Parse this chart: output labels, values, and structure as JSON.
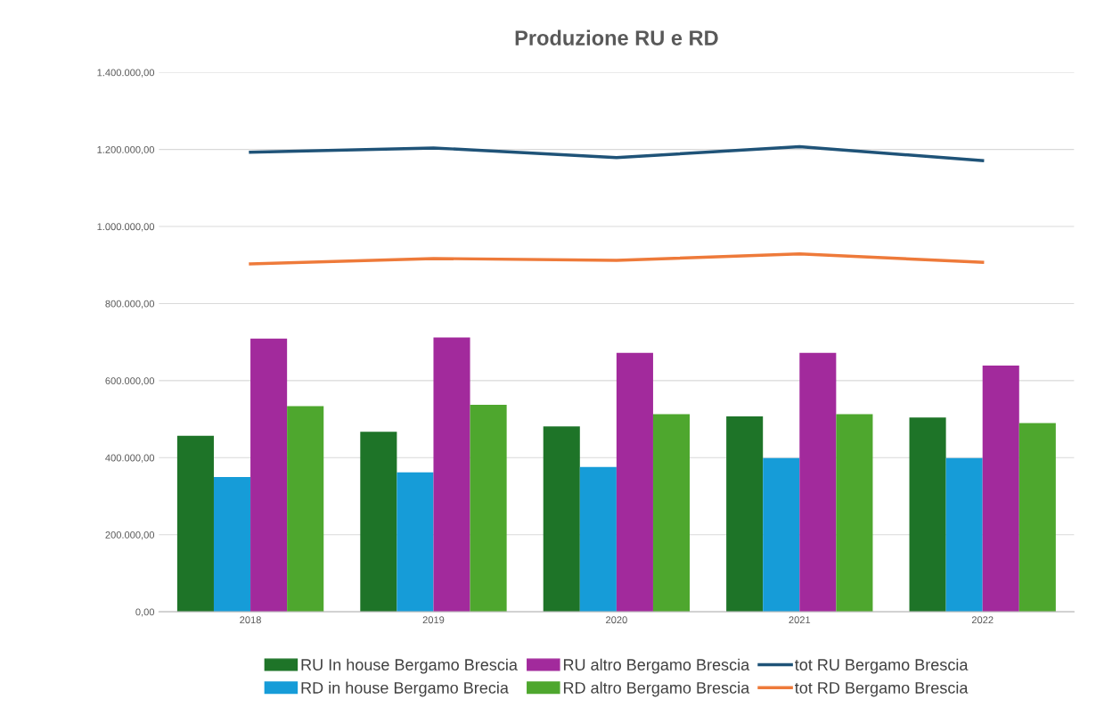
{
  "chart_data": {
    "type": "bar",
    "title": "Produzione RU e RD",
    "categories": [
      "2018",
      "2019",
      "2020",
      "2021",
      "2022"
    ],
    "series": [
      {
        "name": "RU In house Bergamo Brescia",
        "color": "#1e7428",
        "values": [
          457000,
          467000,
          481000,
          507000,
          504000
        ]
      },
      {
        "name": "RD in house Bergamo Brecia",
        "color": "#169cd8",
        "values": [
          350000,
          362000,
          376000,
          399000,
          399000
        ]
      },
      {
        "name": "RU altro Bergamo Brescia",
        "color": "#a22a9c",
        "values": [
          709000,
          712000,
          672000,
          672000,
          639000
        ]
      },
      {
        "name": "RD altro Bergamo Brescia",
        "color": "#4ea72e",
        "values": [
          534000,
          537000,
          513000,
          513000,
          490000
        ]
      },
      {
        "name": "tot RU Bergamo Brescia",
        "type": "line",
        "color": "#1f5378",
        "values": [
          1193000,
          1204000,
          1179000,
          1207000,
          1171000
        ]
      },
      {
        "name": "tot RD Bergamo Brescia",
        "type": "line",
        "color": "#ee7a3a",
        "values": [
          903000,
          917000,
          912000,
          929000,
          907000
        ]
      }
    ],
    "ylim": [
      0,
      1400000
    ],
    "yticks": [
      {
        "value": 0,
        "label": "0,00"
      },
      {
        "value": 200000,
        "label": "200.000,00"
      },
      {
        "value": 400000,
        "label": "400.000,00"
      },
      {
        "value": 600000,
        "label": "600.000,00"
      },
      {
        "value": 800000,
        "label": "800.000,00"
      },
      {
        "value": 1000000,
        "label": "1.000.000,00"
      },
      {
        "value": 1200000,
        "label": "1.200.000,00"
      },
      {
        "value": 1400000,
        "label": "1.400.000,00"
      }
    ],
    "grid": "y",
    "legend": "bottom"
  }
}
